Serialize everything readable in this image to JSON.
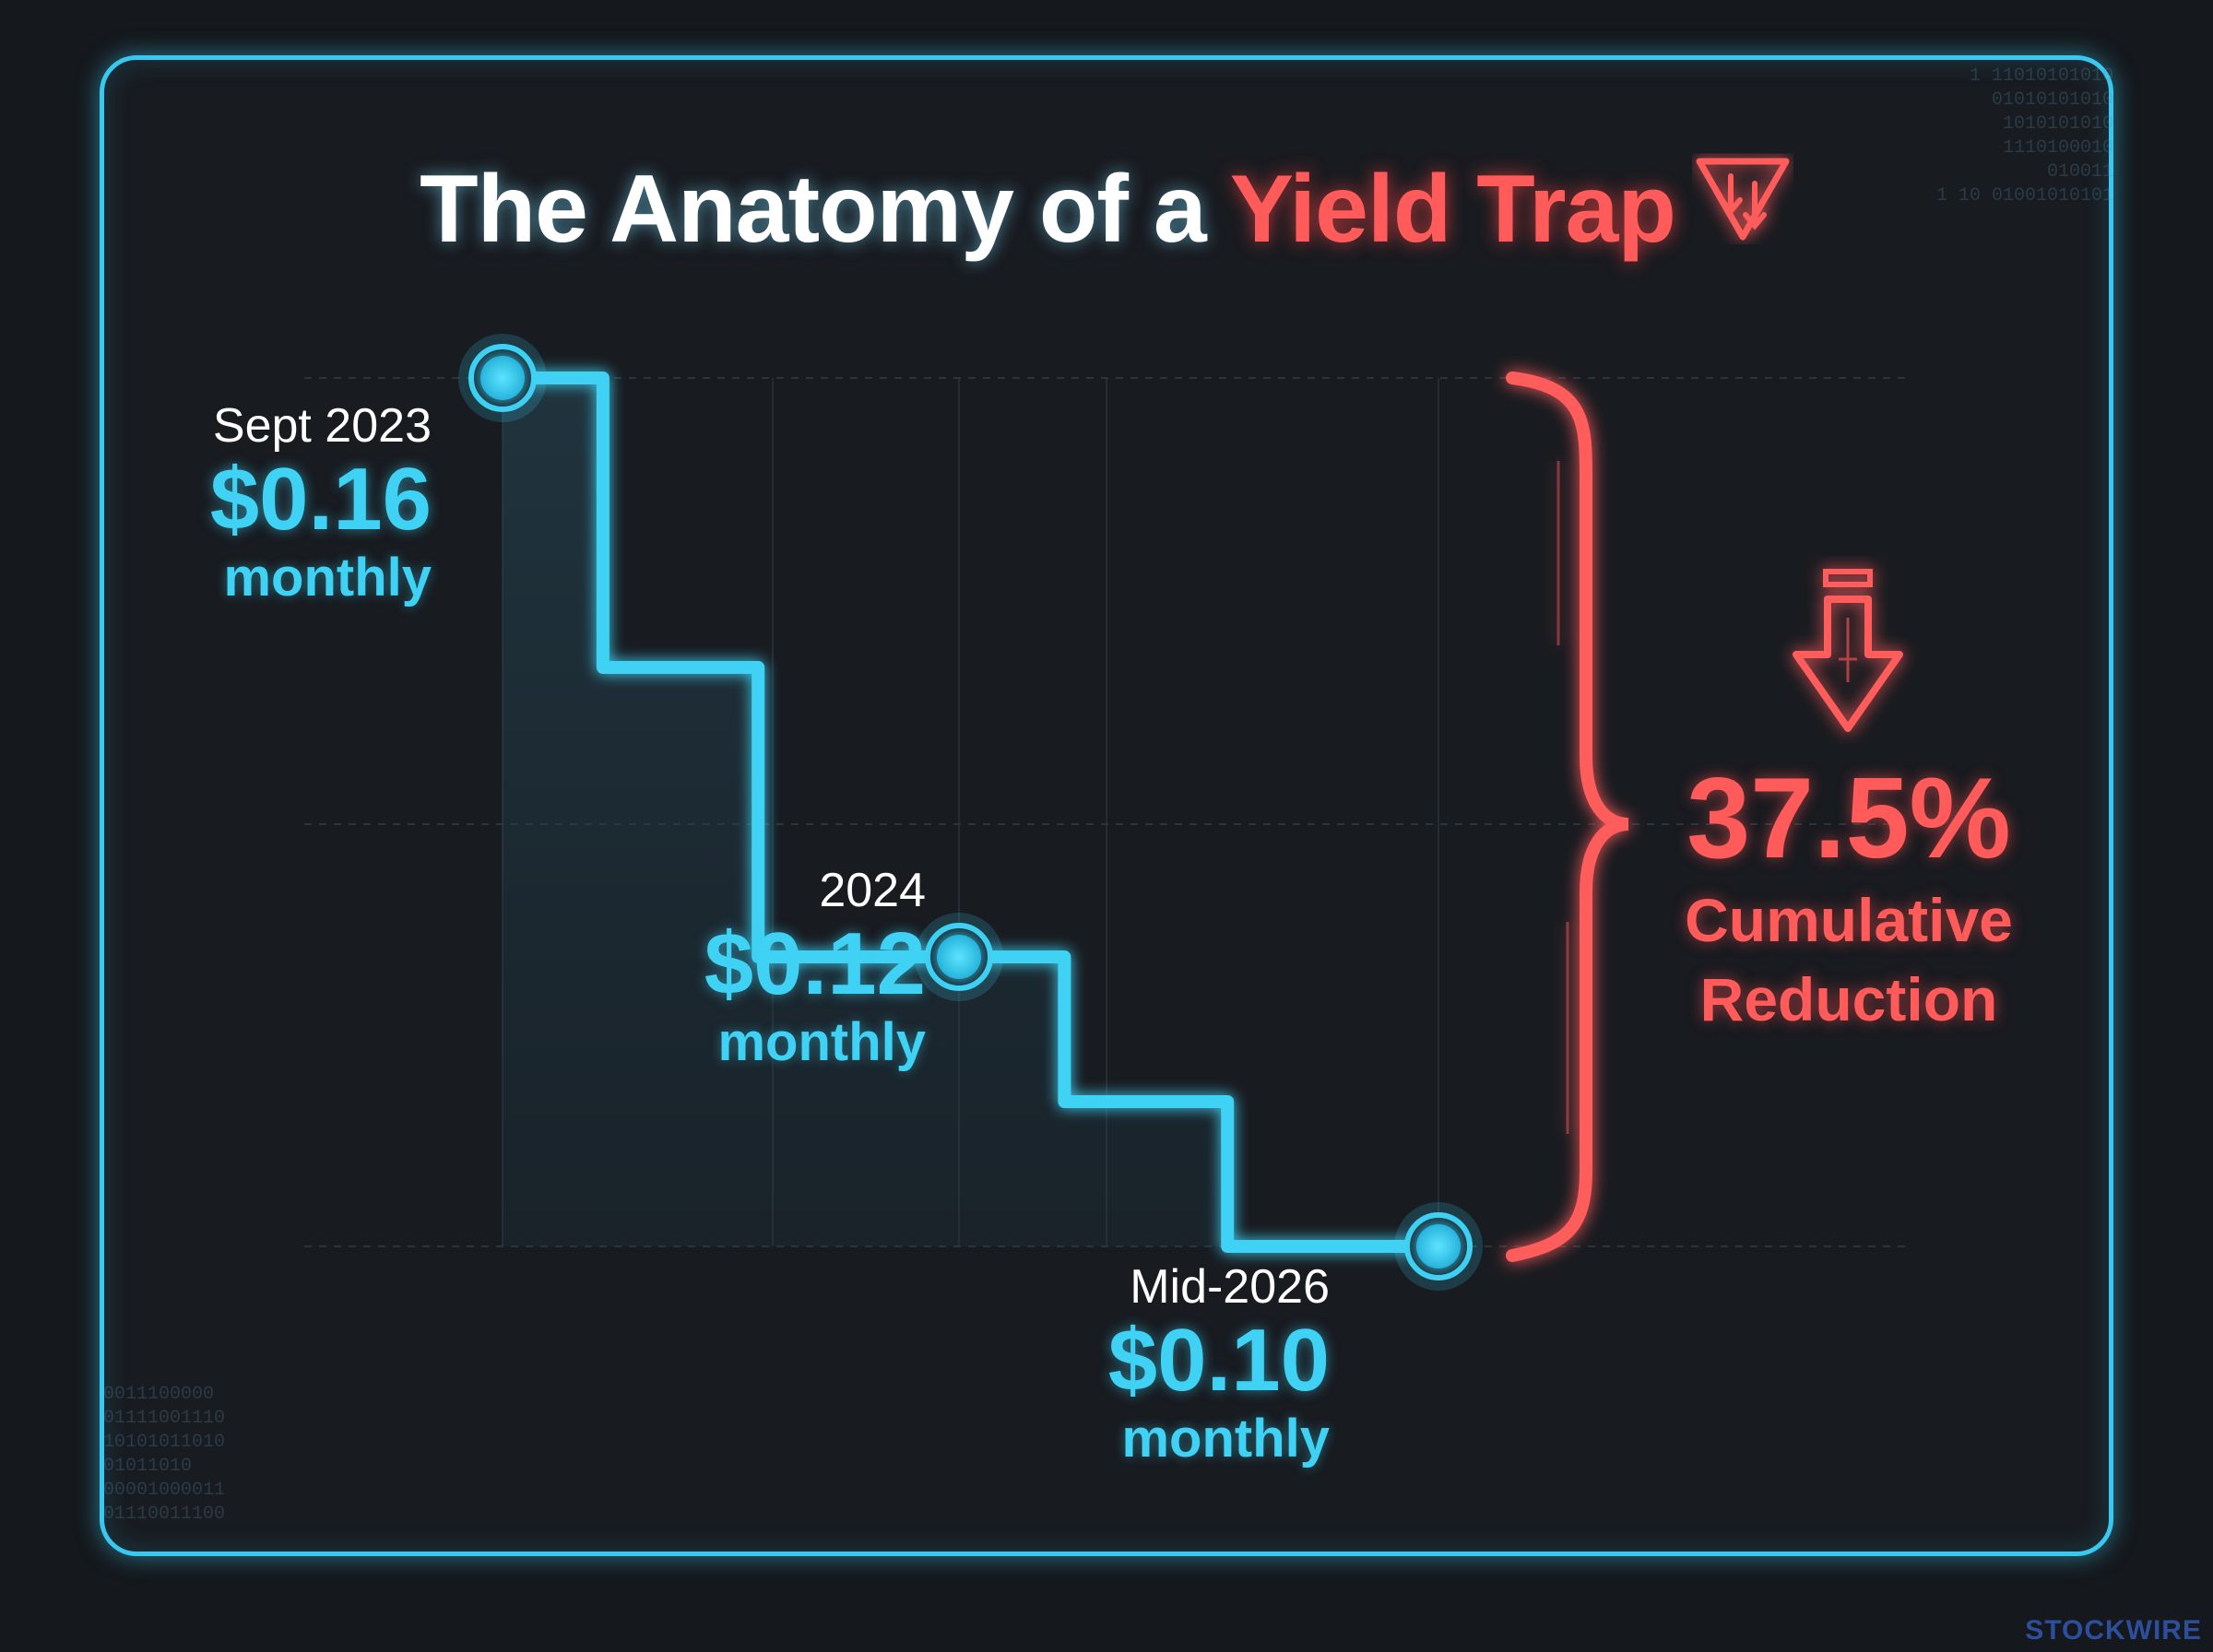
{
  "title": {
    "prefix": "The Anatomy of a ",
    "highlight": "Yield Trap"
  },
  "chart_data": {
    "type": "line",
    "step": true,
    "x": [
      "Sept 2023",
      "2024",
      "Mid-2026"
    ],
    "values": [
      0.16,
      0.12,
      0.1
    ],
    "value_labels": [
      "$0.16",
      "$0.12",
      "$0.10"
    ],
    "unit_label": "monthly",
    "annotation": {
      "value": "37.5%",
      "label_line1": "Cumulative",
      "label_line2": "Reduction"
    },
    "grid": true,
    "ylim": [
      0.1,
      0.16
    ]
  },
  "colors": {
    "line": "#3fd2f4",
    "accent": "#ff5b5b",
    "frame": "#39c8ef",
    "background": "#15181c"
  },
  "icons": {
    "title_icon": "trap-down-arrows-icon",
    "reduction_icon": "down-arrow-icon"
  },
  "watermark": "STOCKWIRE"
}
